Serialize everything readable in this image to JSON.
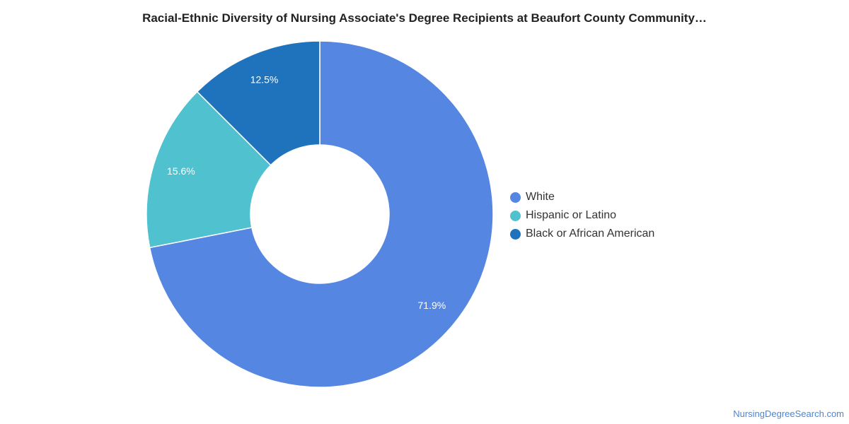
{
  "chart_data": {
    "type": "pie",
    "title": "Racial-Ethnic Diversity of Nursing Associate's Degree Recipients at Beaufort County Community…",
    "donut": true,
    "slices": [
      {
        "name": "White",
        "value": 71.9,
        "label": "71.9%",
        "color": "#5586e2"
      },
      {
        "name": "Hispanic or Latino",
        "value": 15.6,
        "label": "15.6%",
        "color": "#50c1cf"
      },
      {
        "name": "Black or African American",
        "value": 12.5,
        "label": "12.5%",
        "color": "#1f73bd"
      }
    ],
    "legend_position": "right"
  },
  "legend": [
    {
      "label": "White",
      "color": "#5586e2"
    },
    {
      "label": "Hispanic or Latino",
      "color": "#50c1cf"
    },
    {
      "label": "Black or African American",
      "color": "#1f73bd"
    }
  ],
  "footer": {
    "credit": "NursingDegreeSearch.com"
  }
}
